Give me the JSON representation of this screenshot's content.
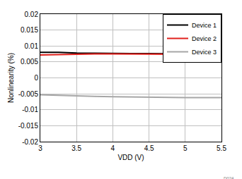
{
  "chart_data": {
    "type": "line",
    "x_label": "VDD (V)",
    "y_label": "Nonlinearity (%)",
    "x": [
      3,
      3.25,
      3.5,
      3.75,
      4,
      4.25,
      4.5,
      4.75,
      5,
      5.25,
      5.5
    ],
    "series": [
      {
        "name": "Device 1",
        "color": "#000000",
        "values": [
          0.008,
          0.008,
          0.0078,
          0.0077,
          0.0077,
          0.0076,
          0.0076,
          0.0076,
          0.0075,
          0.0074,
          0.0073
        ]
      },
      {
        "name": "Device 2",
        "color": "#e0201c",
        "values": [
          0.0072,
          0.0073,
          0.0075,
          0.0075,
          0.0075,
          0.0075,
          0.0075,
          0.0075,
          0.0074,
          0.0069,
          0.0068
        ]
      },
      {
        "name": "Device 3",
        "color": "#a6a6a6",
        "values": [
          -0.0053,
          -0.0055,
          -0.0057,
          -0.0058,
          -0.0059,
          -0.006,
          -0.0061,
          -0.0061,
          -0.0062,
          -0.0062,
          -0.0062
        ]
      }
    ],
    "xlim": [
      3,
      5.5
    ],
    "xticks": [
      3,
      3.5,
      4,
      4.5,
      5,
      5.5
    ],
    "ylim": [
      -0.02,
      0.02
    ],
    "yticks": [
      -0.02,
      -0.015,
      -0.01,
      -0.005,
      0,
      0.005,
      0.01,
      0.015,
      0.02
    ],
    "grid": true,
    "legend": "upper right",
    "annotations": [
      {
        "text": "D024"
      }
    ]
  }
}
